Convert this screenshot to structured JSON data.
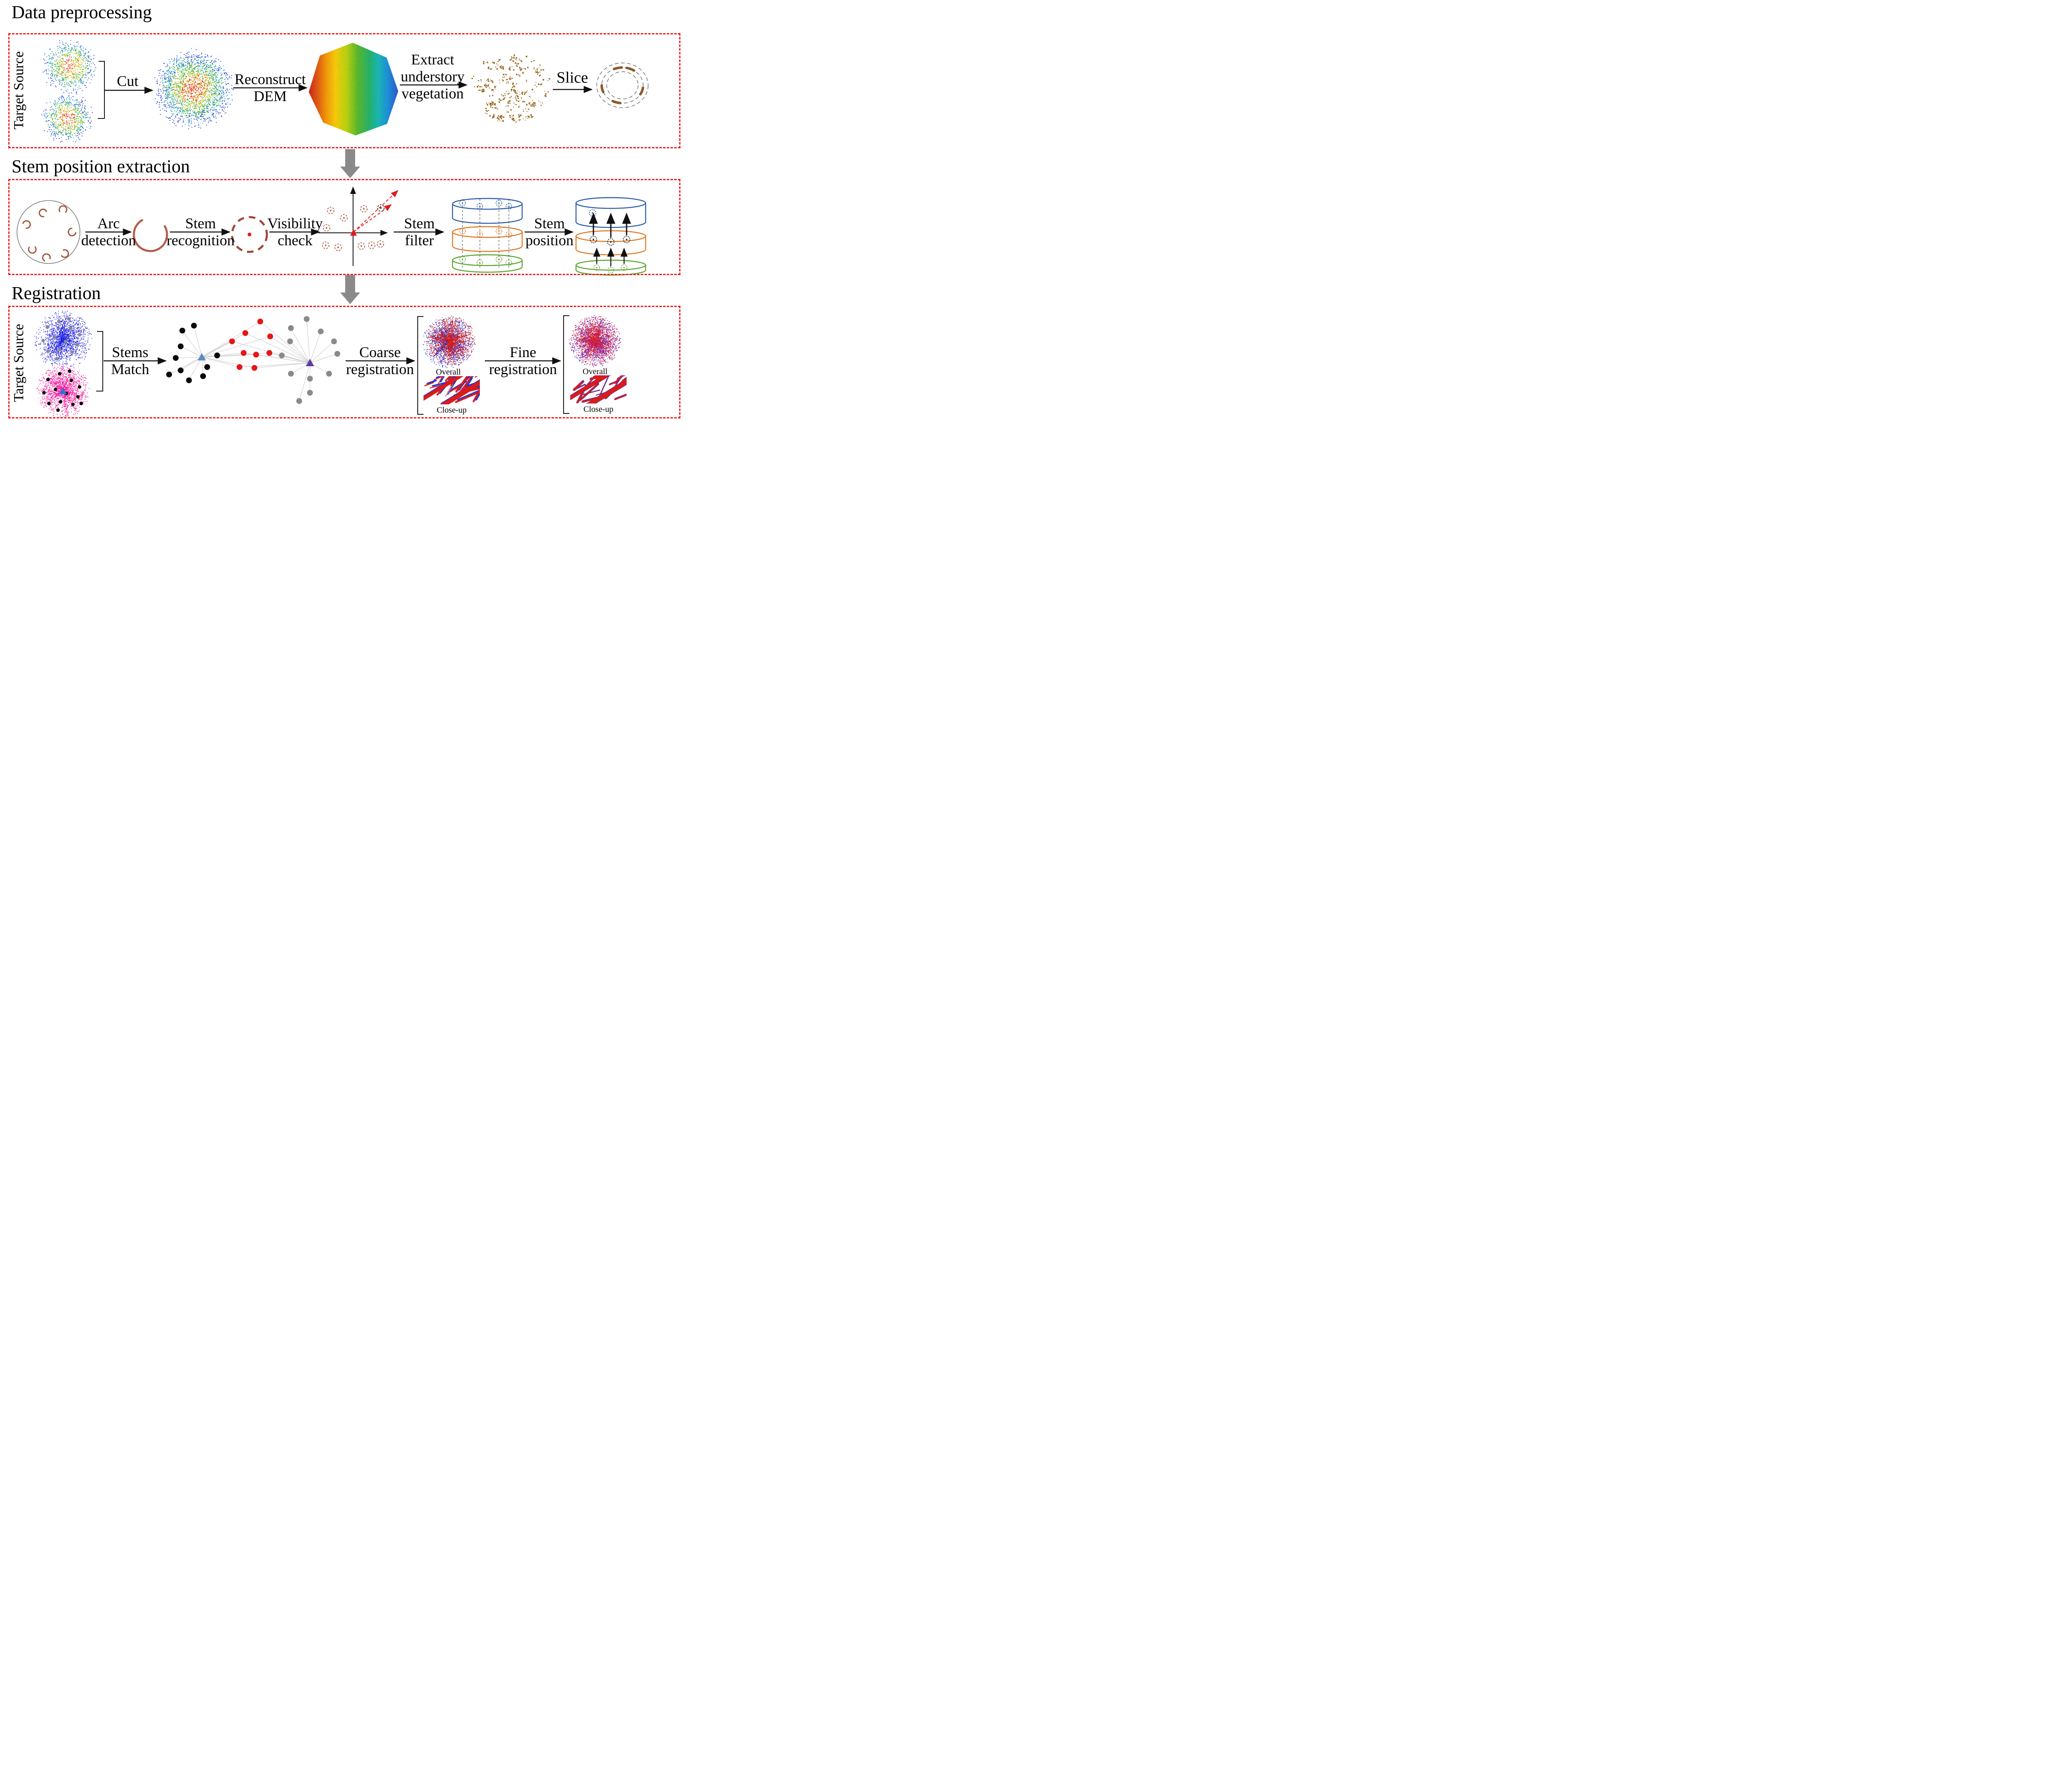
{
  "sections": {
    "preprocessing": {
      "title": "Data preprocessing",
      "side_label": "Target Source",
      "labels": {
        "cut": "Cut",
        "reconstruct_dem": [
          "Reconstruct",
          "DEM"
        ],
        "extract_vegetation": [
          "Extract",
          "understory",
          "vegetation"
        ],
        "slice": "Slice"
      }
    },
    "stem_extraction": {
      "title": "Stem position extraction",
      "labels": {
        "arc_detection": [
          "Arc",
          "detection"
        ],
        "stem_recognition": [
          "Stem",
          "recognition"
        ],
        "visibility_check": [
          "Visibility",
          "check"
        ],
        "stem_filter": [
          "Stem",
          "filter"
        ],
        "stem_position": [
          "Stem",
          "position"
        ]
      }
    },
    "registration": {
      "title": "Registration",
      "side_label": "Target Source",
      "labels": {
        "stems_match": [
          "Stems",
          "Match"
        ],
        "coarse_registration": [
          "Coarse",
          "registration"
        ],
        "fine_registration": [
          "Fine",
          "registration"
        ],
        "overall": "Overall",
        "closeup": "Close-up"
      }
    }
  },
  "colors": {
    "box_border": "#f01616",
    "flow_arrow_gray": "#8a8a8a",
    "stem_brown": "#a2543a",
    "vegetation_brown": "#9a6a25",
    "axis_red": "#e01b1b",
    "cylinder_blue": "#2a5ca8",
    "cylinder_orange": "#e0761f",
    "cylinder_green": "#57a42d",
    "target_blue": "#1414e6",
    "source_magenta": "#f5149e",
    "registered_red": "#d81b1b",
    "registered_blue": "#1b2fd8"
  }
}
